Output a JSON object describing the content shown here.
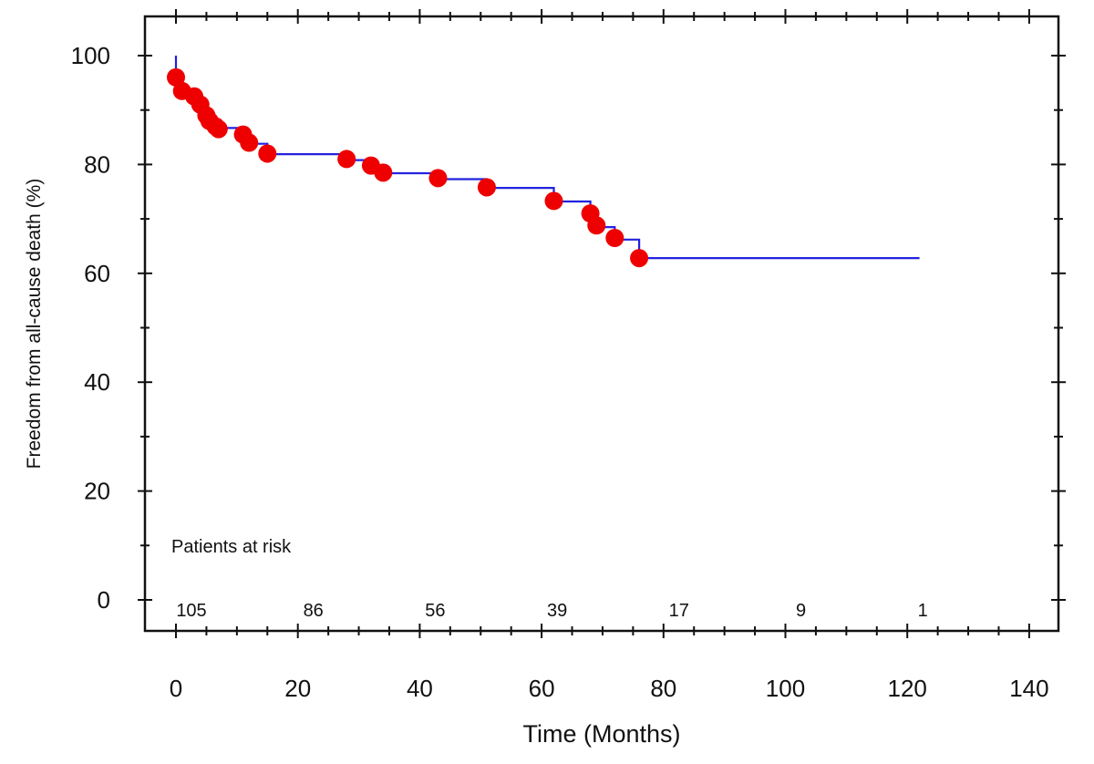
{
  "chart_data": {
    "type": "line",
    "title": "",
    "xlabel": "Time (Months)",
    "ylabel": "Freedom from all-cause death (%)",
    "xlim": [
      -5,
      145
    ],
    "ylim": [
      -5,
      107
    ],
    "x_ticks": [
      0,
      20,
      40,
      60,
      80,
      100,
      120,
      140
    ],
    "y_ticks": [
      0,
      20,
      40,
      60,
      80,
      100
    ],
    "grid": false,
    "colors": {
      "curve": "#2222dd",
      "censor": "#ee0000",
      "axis": "#111111"
    },
    "step_curve": [
      [
        0,
        100
      ],
      [
        0,
        95.2
      ],
      [
        0.5,
        95.2
      ],
      [
        0.5,
        93.3
      ],
      [
        4,
        93.3
      ],
      [
        4,
        91.4
      ],
      [
        5,
        91.4
      ],
      [
        5,
        89.5
      ],
      [
        6,
        89.5
      ],
      [
        6,
        87.6
      ],
      [
        7,
        87.6
      ],
      [
        7,
        86.7
      ],
      [
        11,
        86.7
      ],
      [
        11,
        85.7
      ],
      [
        12,
        85.7
      ],
      [
        12,
        83.8
      ],
      [
        15,
        83.8
      ],
      [
        15,
        81.9
      ],
      [
        28,
        81.9
      ],
      [
        28,
        80.8
      ],
      [
        32,
        80.8
      ],
      [
        32,
        79.5
      ],
      [
        34,
        79.5
      ],
      [
        34,
        78.4
      ],
      [
        43,
        78.4
      ],
      [
        43,
        77.3
      ],
      [
        51,
        77.3
      ],
      [
        51,
        75.7
      ],
      [
        62,
        75.7
      ],
      [
        62,
        73.2
      ],
      [
        68,
        73.2
      ],
      [
        68,
        70.5
      ],
      [
        69,
        70.5
      ],
      [
        69,
        68.5
      ],
      [
        72,
        68.5
      ],
      [
        72,
        66.2
      ],
      [
        76,
        66.2
      ],
      [
        76,
        62.8
      ],
      [
        122,
        62.8
      ]
    ],
    "censor_points": [
      [
        0,
        96
      ],
      [
        1,
        93.5
      ],
      [
        3,
        92.5
      ],
      [
        4,
        91
      ],
      [
        5,
        89
      ],
      [
        5.5,
        88
      ],
      [
        6.5,
        87
      ],
      [
        7,
        86.5
      ],
      [
        11,
        85.5
      ],
      [
        12,
        84
      ],
      [
        15,
        82
      ],
      [
        28,
        81
      ],
      [
        32,
        79.8
      ],
      [
        34,
        78.5
      ],
      [
        43,
        77.5
      ],
      [
        51,
        75.8
      ],
      [
        62,
        73.3
      ],
      [
        68,
        71
      ],
      [
        69,
        68.8
      ],
      [
        72,
        66.5
      ],
      [
        76,
        62.8
      ]
    ],
    "risk_table": {
      "label": "Patients at risk",
      "times": [
        0,
        20,
        40,
        60,
        80,
        100,
        120
      ],
      "counts": [
        "105",
        "86",
        "56",
        "39",
        "17",
        "9",
        "1"
      ]
    }
  }
}
